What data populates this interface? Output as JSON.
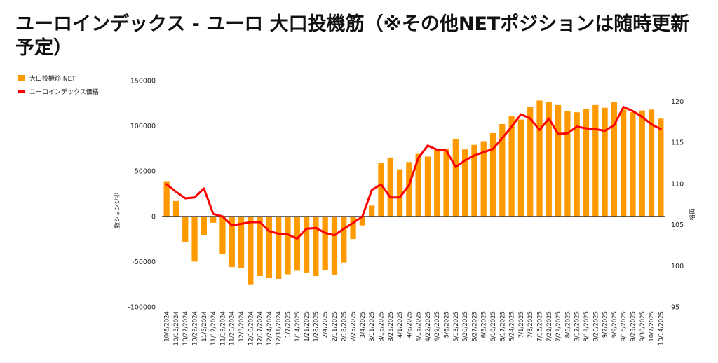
{
  "chart_data": {
    "type": "bar",
    "title": "ユーロインデックス - ユーロ 大口投機筋（※その他NETポジションは随時更新予定）",
    "categories": [
      "10/8/2024",
      "10/15/2024",
      "10/22/2024",
      "10/29/2024",
      "11/5/2024",
      "11/12/2024",
      "11/19/2024",
      "11/26/2024",
      "12/3/2024",
      "12/10/2024",
      "12/17/2024",
      "12/24/2024",
      "12/31/2024",
      "1/7/2025",
      "1/14/2025",
      "1/21/2025",
      "1/28/2025",
      "2/4/2025",
      "2/11/2025",
      "2/18/2025",
      "2/25/2025",
      "3/4/2025",
      "3/11/2025",
      "3/18/2025",
      "3/25/2025",
      "4/1/2025",
      "4/8/2025",
      "4/15/2025",
      "4/22/2025",
      "4/29/2025",
      "5/6/2025",
      "5/13/2025",
      "5/20/2025",
      "5/27/2025",
      "6/3/2025",
      "6/10/2025",
      "6/17/2025",
      "6/24/2025",
      "7/1/2025",
      "7/8/2025",
      "7/15/2025",
      "7/22/2025",
      "7/29/2025",
      "8/5/2025",
      "8/12/2025",
      "8/19/2025",
      "8/26/2025",
      "9/2/2025",
      "9/9/2025",
      "9/16/2025",
      "9/23/2025",
      "9/30/2025",
      "10/7/2025",
      "10/14/2025"
    ],
    "series": [
      {
        "name": "大口投機筋  NET",
        "type": "bar",
        "axis": "left",
        "color": "#ff9900",
        "values": [
          39000,
          17000,
          -28000,
          -50000,
          -21000,
          -7000,
          -42000,
          -56000,
          -57000,
          -75000,
          -66000,
          -68000,
          -69000,
          -64000,
          -60000,
          -62000,
          -66000,
          -59000,
          -65000,
          -51000,
          -25000,
          -10000,
          12000,
          59000,
          65000,
          52000,
          60000,
          69000,
          66000,
          75000,
          75000,
          85000,
          74000,
          79000,
          83000,
          92000,
          102000,
          111000,
          107000,
          121000,
          128000,
          126000,
          123000,
          116000,
          115000,
          119000,
          123000,
          120000,
          126000,
          118000,
          115000,
          117000,
          118000,
          108000
        ]
      },
      {
        "name": "ユーロインデックス価格",
        "type": "line",
        "axis": "right",
        "color": "#ff0000",
        "values": [
          109.9,
          109.0,
          108.2,
          108.3,
          109.4,
          106.3,
          106.0,
          104.9,
          105.1,
          105.3,
          105.3,
          104.2,
          103.9,
          103.8,
          103.3,
          104.5,
          104.6,
          104.0,
          103.7,
          104.5,
          105.2,
          106.0,
          109.2,
          109.9,
          108.3,
          108.3,
          109.8,
          113.1,
          114.6,
          114.1,
          114.0,
          112.0,
          112.8,
          113.4,
          113.8,
          114.2,
          115.5,
          116.9,
          118.4,
          117.9,
          116.5,
          117.9,
          116.0,
          116.1,
          116.9,
          116.7,
          116.6,
          116.4,
          117.1,
          119.3,
          118.8,
          118.1,
          117.2,
          116.6
        ]
      }
    ],
    "yaxis_left": {
      "title": "数ションジボ",
      "ylim": [
        -100000,
        150000
      ],
      "ticks": [
        -100000,
        -50000,
        0,
        50000,
        100000,
        150000
      ]
    },
    "yaxis_right": {
      "title": "格価",
      "ylim": [
        95,
        122.5
      ],
      "ticks": [
        95,
        100,
        105,
        110,
        115,
        120
      ]
    },
    "legend": {
      "placement": "top-left"
    }
  },
  "colors": {
    "bar": "#ff9900",
    "line": "#ff0000",
    "zero_line": "#333333",
    "text": "#222222"
  }
}
